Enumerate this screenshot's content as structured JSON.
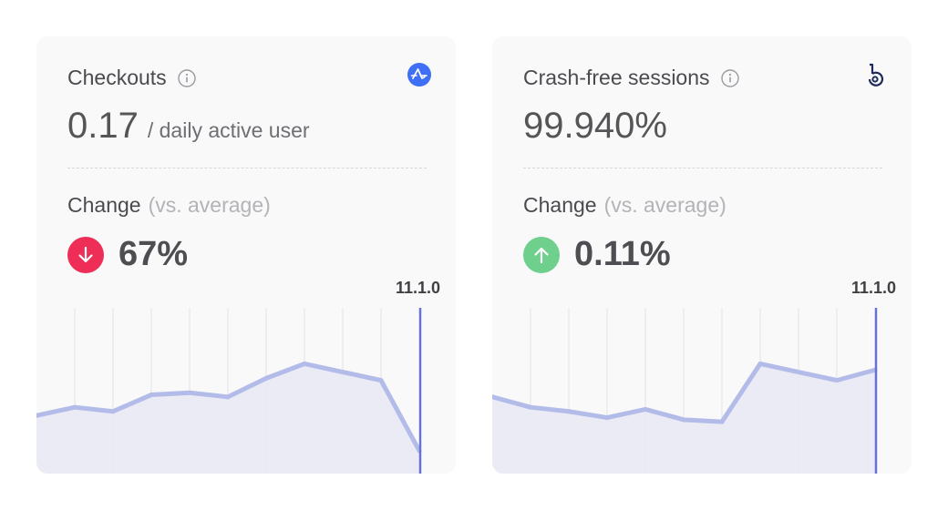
{
  "cards": [
    {
      "title": "Checkouts",
      "brand_icon": "amplitude-logo-icon",
      "brand_color": "#3e6ff4",
      "value": "0.17",
      "unit": "/ daily active user",
      "change_label": "Change",
      "change_note": "(vs. average)",
      "delta": "67%",
      "delta_direction": "down",
      "delta_color": "#ee2e57",
      "release_label": "11.1.0",
      "chart_data": {
        "type": "area",
        "y": [
          28,
          32,
          30,
          38,
          39,
          37,
          46,
          53,
          49,
          45,
          11
        ],
        "marker_index": 10,
        "ylim": [
          0,
          80
        ]
      }
    },
    {
      "title": "Crash-free sessions",
      "brand_icon": "bugsnag-logo-icon",
      "brand_color": "#1f2a5c",
      "value": "99.940%",
      "unit": "",
      "change_label": "Change",
      "change_note": "(vs. average)",
      "delta": "0.11%",
      "delta_direction": "up",
      "delta_color": "#6fcf8c",
      "release_label": "11.1.0",
      "chart_data": {
        "type": "area",
        "y": [
          37,
          32,
          30,
          27,
          31,
          26,
          25,
          53,
          49,
          45,
          50
        ],
        "marker_index": 10,
        "ylim": [
          0,
          80
        ]
      }
    }
  ]
}
